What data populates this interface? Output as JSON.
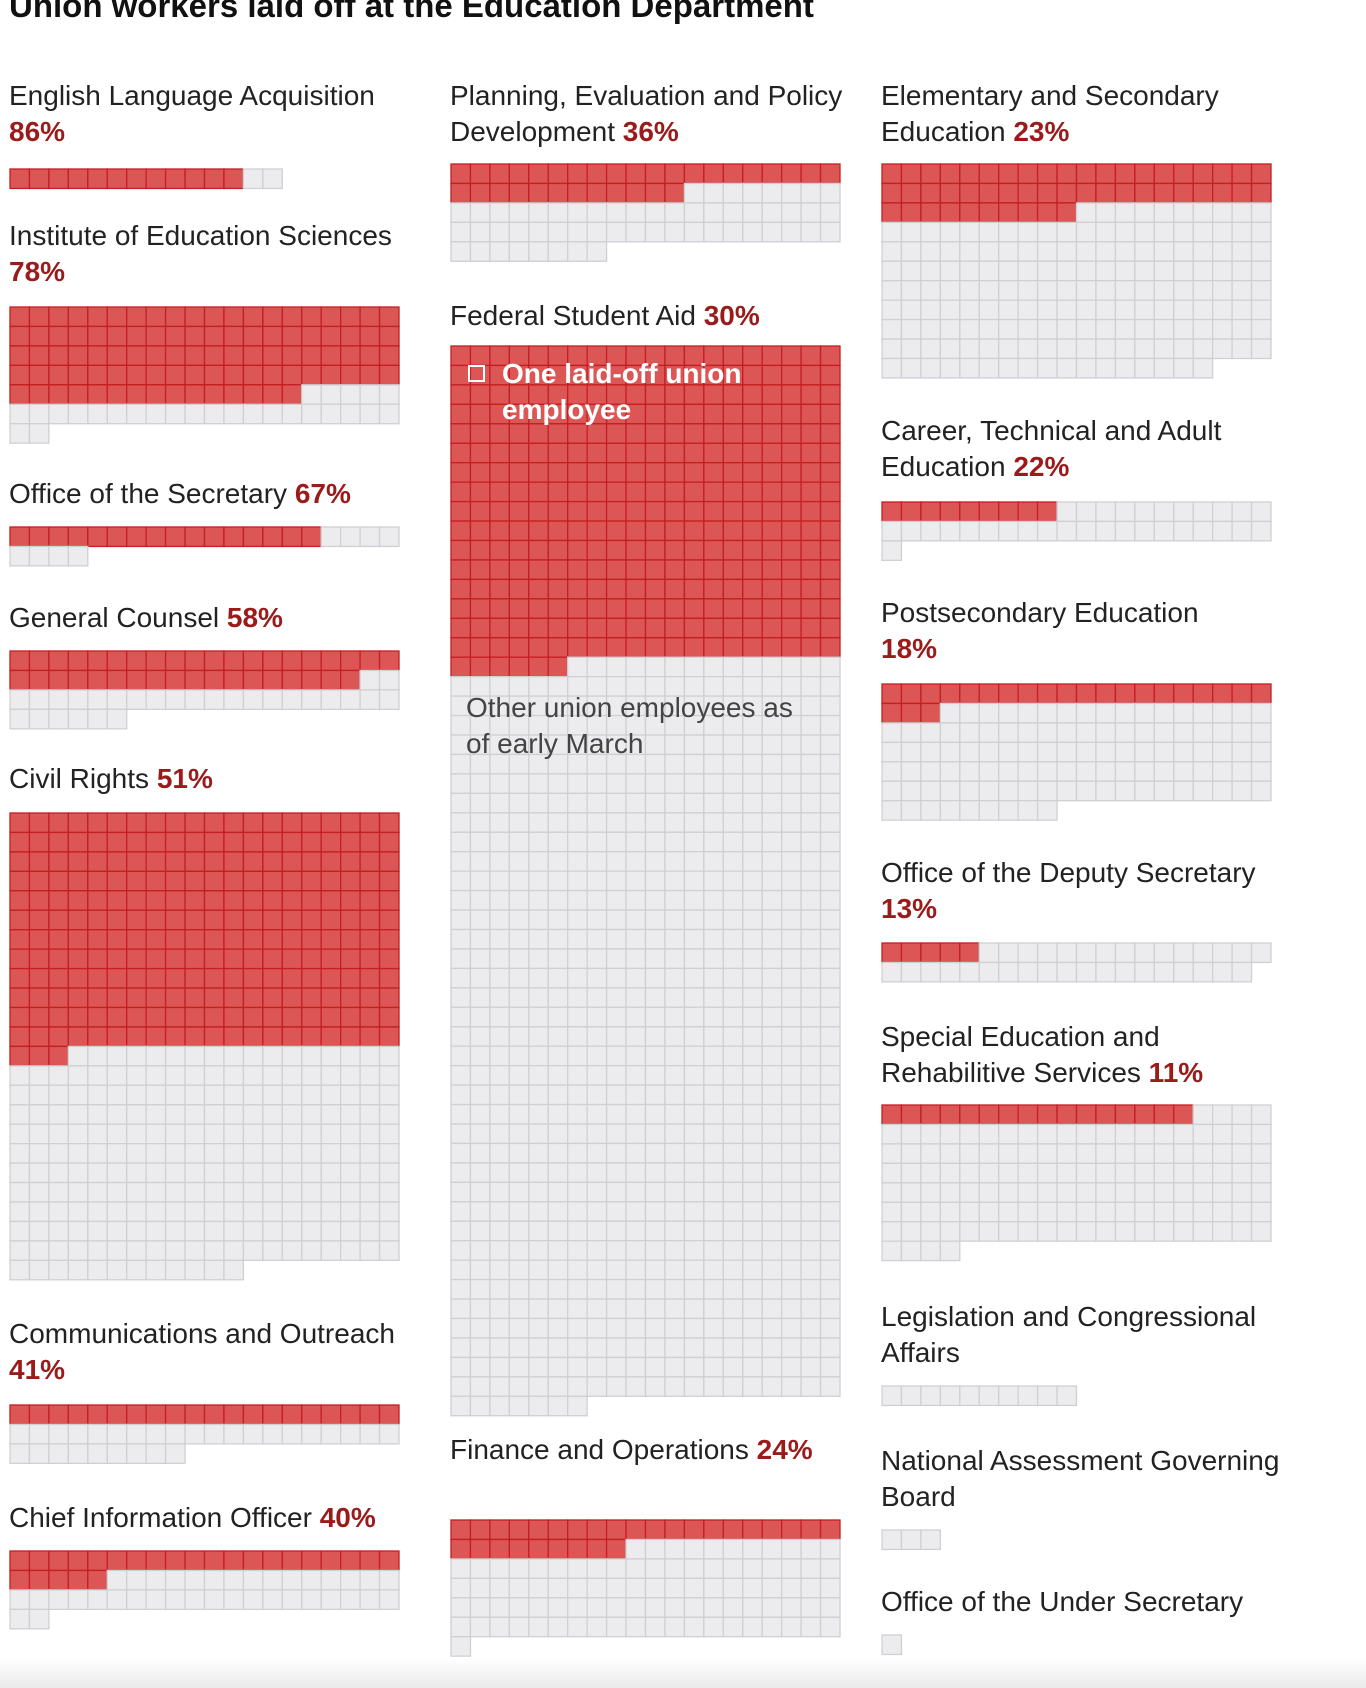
{
  "title": "Union workers laid off at the Education Department",
  "legend": {
    "laid_off_label": "One laid-off union employee",
    "other_label": "Other union employees as of early March"
  },
  "colors": {
    "laid_off_fill": "#dc5656",
    "laid_off_stroke": "#c41f23",
    "other_fill": "#ececee",
    "other_stroke": "#d0d0d4",
    "percent_text": "#9b1b1b"
  },
  "chart_data": {
    "type": "unit-grid",
    "unit": "one union employee per square",
    "offices": [
      {
        "name": "English Language Acquisition",
        "percent": "86%",
        "laid_off": 12,
        "total": 14
      },
      {
        "name": "Institute of Education Sciences",
        "percent": "78%",
        "laid_off": 95,
        "total": 122
      },
      {
        "name": "Office of the Secretary",
        "percent": "67%",
        "laid_off": 16,
        "total": 24
      },
      {
        "name": "General Counsel",
        "percent": "58%",
        "laid_off": 38,
        "total": 66
      },
      {
        "name": "Civil Rights",
        "percent": "51%",
        "laid_off": 243,
        "total": 472
      },
      {
        "name": "Communications and Outreach",
        "percent": "41%",
        "laid_off": 20,
        "total": 49
      },
      {
        "name": "Chief Information Officer",
        "percent": "40%",
        "laid_off": 25,
        "total": 62
      },
      {
        "name": "Planning, Evaluation and Policy Development",
        "percent": "36%",
        "laid_off": 32,
        "total": 88
      },
      {
        "name": "Federal Student Aid",
        "percent": "30%",
        "laid_off": 326,
        "total": 1087
      },
      {
        "name": "Finance and Operations",
        "percent": "24%",
        "laid_off": 29,
        "total": 121
      },
      {
        "name": "Elementary and Secondary Education",
        "percent": "23%",
        "laid_off": 50,
        "total": 217
      },
      {
        "name": "Career, Technical and Adult Education",
        "percent": "22%",
        "laid_off": 9,
        "total": 41
      },
      {
        "name": "Postsecondary Education",
        "percent": "18%",
        "laid_off": 23,
        "total": 129
      },
      {
        "name": "Office of the Deputy Secretary",
        "percent": "13%",
        "laid_off": 5,
        "total": 39
      },
      {
        "name": "Special Education and Rehabilitive Services",
        "percent": "11%",
        "laid_off": 16,
        "total": 144
      },
      {
        "name": "Legislation and Congressional Affairs",
        "percent": "",
        "laid_off": 0,
        "total": 10
      },
      {
        "name": "National Assessment Governing Board",
        "percent": "",
        "laid_off": 0,
        "total": 3
      },
      {
        "name": "Office of the Under Secretary",
        "percent": "",
        "laid_off": 0,
        "total": 1
      }
    ]
  }
}
